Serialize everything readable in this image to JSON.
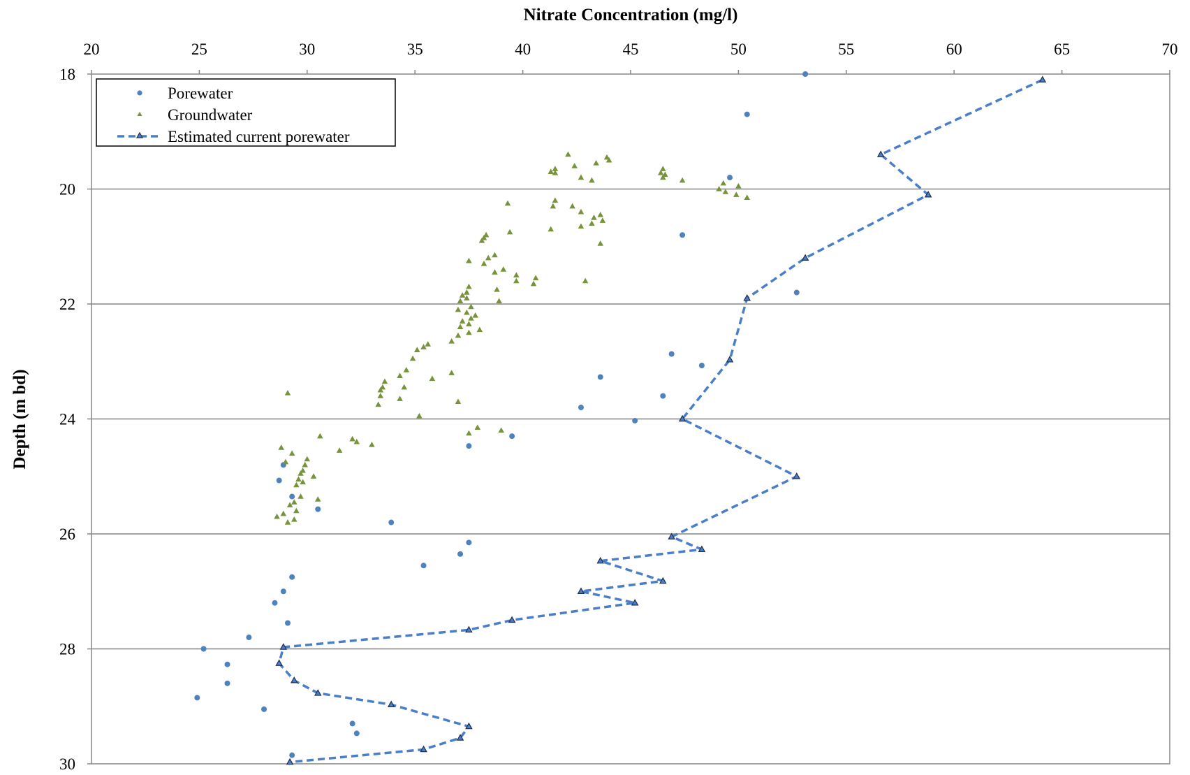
{
  "chart_data": {
    "type": "scatter",
    "title": "Nitrate Concentration (mg/l)",
    "xlabel": "Nitrate Concentration (mg/l)",
    "ylabel": "Depth (m bd)",
    "xlim": [
      20,
      70
    ],
    "ylim": [
      18,
      30
    ],
    "y_inverted": true,
    "x_axis_position": "top",
    "x_ticks": [
      "20",
      "25",
      "30",
      "35",
      "40",
      "45",
      "50",
      "55",
      "60",
      "65",
      "70"
    ],
    "y_ticks": [
      "18",
      "20",
      "22",
      "24",
      "26",
      "28",
      "30"
    ],
    "grid": "horizontal",
    "legend_position": "top-left",
    "colors": {
      "porewater": "#4f81bd",
      "groundwater": "#77933c",
      "estimated": "#4a7ec9",
      "grid": "#868686"
    },
    "series": [
      {
        "name": "Porewater",
        "kind": "scatter-circle",
        "points": [
          [
            53.1,
            18.0
          ],
          [
            50.4,
            18.7
          ],
          [
            49.6,
            19.8
          ],
          [
            47.4,
            20.8
          ],
          [
            52.7,
            21.8
          ],
          [
            46.9,
            22.87
          ],
          [
            48.3,
            23.07
          ],
          [
            43.6,
            23.27
          ],
          [
            46.5,
            23.6
          ],
          [
            42.7,
            23.8
          ],
          [
            45.2,
            24.03
          ],
          [
            39.5,
            24.3
          ],
          [
            37.5,
            24.47
          ],
          [
            28.9,
            24.8
          ],
          [
            28.7,
            25.07
          ],
          [
            29.3,
            25.35
          ],
          [
            30.5,
            25.57
          ],
          [
            33.9,
            25.8
          ],
          [
            37.5,
            26.15
          ],
          [
            37.1,
            26.35
          ],
          [
            35.4,
            26.55
          ],
          [
            29.3,
            26.75
          ],
          [
            28.9,
            27.0
          ],
          [
            28.5,
            27.2
          ],
          [
            29.1,
            27.55
          ],
          [
            27.3,
            27.8
          ],
          [
            25.2,
            28.0
          ],
          [
            26.3,
            28.27
          ],
          [
            26.3,
            28.6
          ],
          [
            24.9,
            28.85
          ],
          [
            28.0,
            29.05
          ],
          [
            32.1,
            29.3
          ],
          [
            32.3,
            29.47
          ],
          [
            29.3,
            29.85
          ]
        ]
      },
      {
        "name": "Groundwater",
        "kind": "scatter-triangle",
        "points": [
          [
            42.1,
            19.4
          ],
          [
            43.9,
            19.45
          ],
          [
            44.0,
            19.5
          ],
          [
            43.4,
            19.55
          ],
          [
            42.4,
            19.6
          ],
          [
            41.5,
            19.65
          ],
          [
            46.5,
            19.65
          ],
          [
            41.3,
            19.7
          ],
          [
            41.5,
            19.72
          ],
          [
            46.4,
            19.72
          ],
          [
            46.6,
            19.75
          ],
          [
            42.7,
            19.8
          ],
          [
            43.2,
            19.85
          ],
          [
            46.5,
            19.8
          ],
          [
            47.4,
            19.85
          ],
          [
            49.3,
            19.9
          ],
          [
            50.0,
            19.95
          ],
          [
            49.1,
            20.0
          ],
          [
            49.4,
            20.05
          ],
          [
            49.9,
            20.1
          ],
          [
            50.4,
            20.15
          ],
          [
            41.5,
            20.2
          ],
          [
            39.3,
            20.25
          ],
          [
            41.4,
            20.3
          ],
          [
            42.3,
            20.3
          ],
          [
            42.7,
            20.4
          ],
          [
            43.6,
            20.45
          ],
          [
            43.3,
            20.5
          ],
          [
            43.7,
            20.55
          ],
          [
            42.7,
            20.65
          ],
          [
            43.2,
            20.6
          ],
          [
            41.3,
            20.7
          ],
          [
            39.4,
            20.75
          ],
          [
            38.3,
            20.8
          ],
          [
            38.2,
            20.85
          ],
          [
            38.1,
            20.9
          ],
          [
            43.6,
            20.95
          ],
          [
            38.7,
            21.15
          ],
          [
            38.4,
            21.2
          ],
          [
            37.5,
            21.25
          ],
          [
            38.2,
            21.3
          ],
          [
            39.1,
            21.4
          ],
          [
            38.7,
            21.45
          ],
          [
            39.7,
            21.5
          ],
          [
            40.6,
            21.55
          ],
          [
            39.7,
            21.6
          ],
          [
            42.9,
            21.6
          ],
          [
            40.5,
            21.65
          ],
          [
            37.5,
            21.7
          ],
          [
            37.4,
            21.8
          ],
          [
            38.8,
            21.75
          ],
          [
            37.2,
            21.85
          ],
          [
            37.4,
            21.9
          ],
          [
            37.1,
            21.95
          ],
          [
            38.9,
            21.95
          ],
          [
            37.6,
            22.05
          ],
          [
            37.0,
            22.1
          ],
          [
            37.4,
            22.15
          ],
          [
            37.8,
            22.2
          ],
          [
            37.6,
            22.25
          ],
          [
            37.2,
            22.3
          ],
          [
            37.5,
            22.35
          ],
          [
            37.1,
            22.4
          ],
          [
            38.0,
            22.45
          ],
          [
            37.5,
            22.5
          ],
          [
            37.0,
            22.55
          ],
          [
            36.7,
            22.65
          ],
          [
            35.6,
            22.7
          ],
          [
            35.4,
            22.75
          ],
          [
            35.1,
            22.8
          ],
          [
            34.9,
            22.95
          ],
          [
            34.6,
            23.15
          ],
          [
            34.3,
            23.25
          ],
          [
            33.6,
            23.35
          ],
          [
            33.5,
            23.45
          ],
          [
            33.4,
            23.5
          ],
          [
            33.4,
            23.6
          ],
          [
            34.5,
            23.45
          ],
          [
            33.3,
            23.75
          ],
          [
            34.3,
            23.65
          ],
          [
            35.8,
            23.3
          ],
          [
            36.7,
            23.2
          ],
          [
            37.0,
            23.7
          ],
          [
            35.2,
            23.95
          ],
          [
            29.1,
            23.55
          ],
          [
            37.9,
            24.15
          ],
          [
            39.0,
            24.2
          ],
          [
            37.5,
            24.25
          ],
          [
            30.6,
            24.3
          ],
          [
            32.1,
            24.35
          ],
          [
            32.3,
            24.4
          ],
          [
            33.0,
            24.45
          ],
          [
            31.5,
            24.55
          ],
          [
            28.8,
            24.5
          ],
          [
            29.3,
            24.6
          ],
          [
            30.0,
            24.7
          ],
          [
            29.0,
            24.75
          ],
          [
            29.9,
            24.8
          ],
          [
            29.8,
            24.9
          ],
          [
            30.3,
            25.0
          ],
          [
            29.7,
            24.95
          ],
          [
            29.6,
            25.05
          ],
          [
            29.8,
            25.1
          ],
          [
            29.5,
            25.15
          ],
          [
            29.7,
            25.35
          ],
          [
            30.5,
            25.4
          ],
          [
            29.4,
            25.45
          ],
          [
            29.2,
            25.5
          ],
          [
            29.5,
            25.6
          ],
          [
            28.9,
            25.65
          ],
          [
            28.6,
            25.7
          ],
          [
            29.4,
            25.75
          ],
          [
            29.1,
            25.8
          ]
        ]
      },
      {
        "name": "Estimated current porewater",
        "kind": "dashed-line-triangle",
        "points": [
          [
            64.1,
            18.1
          ],
          [
            56.6,
            19.4
          ],
          [
            58.8,
            20.1
          ],
          [
            53.1,
            21.2
          ],
          [
            50.4,
            21.9
          ],
          [
            49.6,
            22.97
          ],
          [
            47.4,
            24.0
          ],
          [
            52.7,
            25.0
          ],
          [
            46.9,
            26.05
          ],
          [
            48.3,
            26.27
          ],
          [
            43.6,
            26.47
          ],
          [
            46.5,
            26.82
          ],
          [
            42.7,
            27.0
          ],
          [
            45.2,
            27.2
          ],
          [
            39.5,
            27.5
          ],
          [
            37.5,
            27.67
          ],
          [
            28.9,
            27.97
          ],
          [
            28.7,
            28.25
          ],
          [
            29.4,
            28.55
          ],
          [
            30.5,
            28.77
          ],
          [
            33.9,
            28.97
          ],
          [
            37.5,
            29.35
          ],
          [
            37.1,
            29.55
          ],
          [
            35.4,
            29.75
          ],
          [
            29.2,
            29.97
          ]
        ]
      }
    ]
  }
}
